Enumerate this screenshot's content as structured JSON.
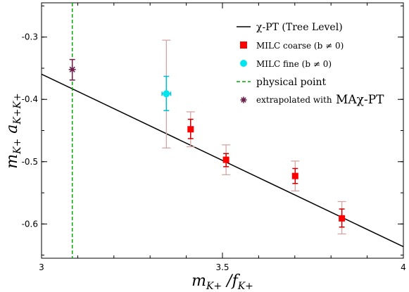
{
  "chart_data": {
    "type": "scatter",
    "xlim": [
      3.0,
      4.0
    ],
    "ylim": [
      -0.655,
      -0.245
    ],
    "x_ticks": [
      3,
      3.5,
      4
    ],
    "x_tick_labels": [
      "3",
      "3.5",
      "4"
    ],
    "y_ticks": [
      -0.3,
      -0.4,
      -0.5,
      -0.6
    ],
    "y_tick_labels": [
      "-0.3",
      "-0.4",
      "-0.5",
      "-0.6"
    ],
    "xlabel": {
      "main": "m",
      "sub1": "K+",
      "sep": " /",
      "main2": "f",
      "sub2": "K+"
    },
    "ylabel": {
      "main1": "m",
      "sub1": "K+",
      "main2": " a",
      "sub2": "K+K+"
    },
    "grid": false,
    "legend_position": "top-right",
    "series": [
      {
        "name": "χ-PT  (Tree Level)",
        "kind": "line",
        "color": "#000000",
        "x": [
          3.0,
          4.0
        ],
        "y": [
          -0.3595,
          -0.6365
        ]
      },
      {
        "name": "MILC coarse (b ≠ 0)",
        "kind": "points",
        "marker": "square",
        "color": "#ff0000",
        "errcolor": "#cc0000",
        "syscolor": "#d4a5a5",
        "points": [
          {
            "x": 3.412,
            "y": -0.448,
            "stat": [
              -0.463,
              -0.432
            ],
            "sys": [
              -0.476,
              -0.42
            ]
          },
          {
            "x": 3.51,
            "y": -0.497,
            "stat": [
              -0.508,
              -0.487
            ],
            "sys": [
              -0.521,
              -0.473
            ]
          },
          {
            "x": 3.701,
            "y": -0.523,
            "stat": [
              -0.535,
              -0.511
            ],
            "sys": [
              -0.547,
              -0.499
            ]
          },
          {
            "x": 3.83,
            "y": -0.591,
            "stat": [
              -0.605,
              -0.576
            ],
            "sys": [
              -0.616,
              -0.564
            ]
          }
        ]
      },
      {
        "name": "MILC fine  (b ≠ 0)",
        "kind": "points",
        "marker": "circle",
        "color": "#00e5ee",
        "errcolor": "#00bcd4",
        "syscolor": "#d4a5a5",
        "points": [
          {
            "x": 3.345,
            "y": -0.391,
            "xerr": 0.012,
            "stat": [
              -0.418,
              -0.363
            ],
            "sys": [
              -0.478,
              -0.305
            ]
          }
        ]
      },
      {
        "name": "physical point",
        "kind": "vline",
        "color": "#00aa00",
        "x": 3.085
      },
      {
        "name_prefix": "extrapolated with",
        "name_suffix": "MAχ-PT",
        "kind": "points",
        "marker": "star",
        "color": "#6b1d4a",
        "points": [
          {
            "x": 3.085,
            "y": -0.352,
            "stat": [
              -0.369,
              -0.336
            ]
          }
        ]
      }
    ]
  }
}
